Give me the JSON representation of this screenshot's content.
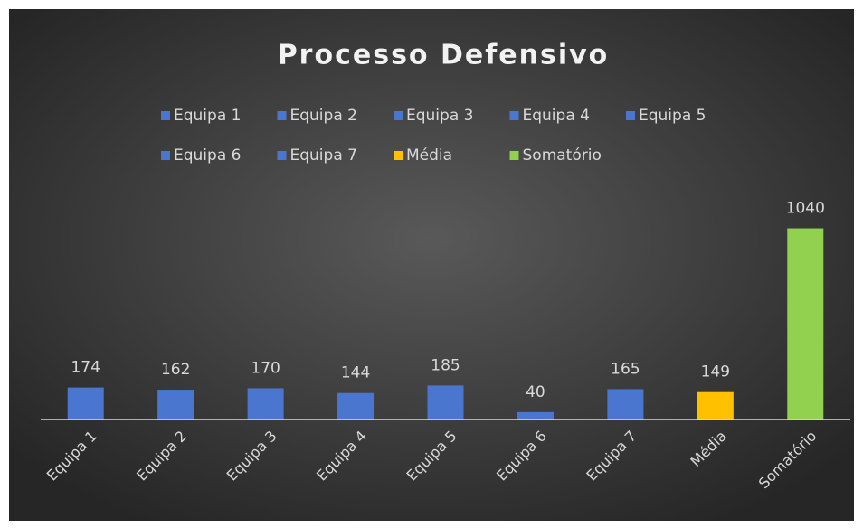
{
  "chart_data": {
    "type": "bar",
    "title": "Processo Defensivo",
    "categories": [
      "Equipa 1",
      "Equipa 2",
      "Equipa 3",
      "Equipa 4",
      "Equipa 5",
      "Equipa 6",
      "Equipa 7",
      "Média",
      "Somatório"
    ],
    "series": [
      {
        "name": "Equipa 1",
        "color": "#4a76d0",
        "values": [
          174,
          null,
          null,
          null,
          null,
          null,
          null,
          null,
          null
        ]
      },
      {
        "name": "Equipa 2",
        "color": "#4a76d0",
        "values": [
          null,
          162,
          null,
          null,
          null,
          null,
          null,
          null,
          null
        ]
      },
      {
        "name": "Equipa 3",
        "color": "#4a76d0",
        "values": [
          null,
          null,
          170,
          null,
          null,
          null,
          null,
          null,
          null
        ]
      },
      {
        "name": "Equipa 4",
        "color": "#4a76d0",
        "values": [
          null,
          null,
          null,
          144,
          null,
          null,
          null,
          null,
          null
        ]
      },
      {
        "name": "Equipa 5",
        "color": "#4a76d0",
        "values": [
          null,
          null,
          null,
          null,
          185,
          null,
          null,
          null,
          null
        ]
      },
      {
        "name": "Equipa 6",
        "color": "#4a76d0",
        "values": [
          null,
          null,
          null,
          null,
          null,
          40,
          null,
          null,
          null
        ]
      },
      {
        "name": "Equipa 7",
        "color": "#4a76d0",
        "values": [
          null,
          null,
          null,
          null,
          null,
          null,
          165,
          null,
          null
        ]
      },
      {
        "name": "Média",
        "color": "#ffc000",
        "values": [
          null,
          null,
          null,
          null,
          null,
          null,
          null,
          149,
          null
        ]
      },
      {
        "name": "Somatório",
        "color": "#92d050",
        "values": [
          null,
          null,
          null,
          null,
          null,
          null,
          null,
          null,
          1040
        ]
      }
    ],
    "ylim": [
      0,
      1200
    ],
    "legend": "top"
  }
}
